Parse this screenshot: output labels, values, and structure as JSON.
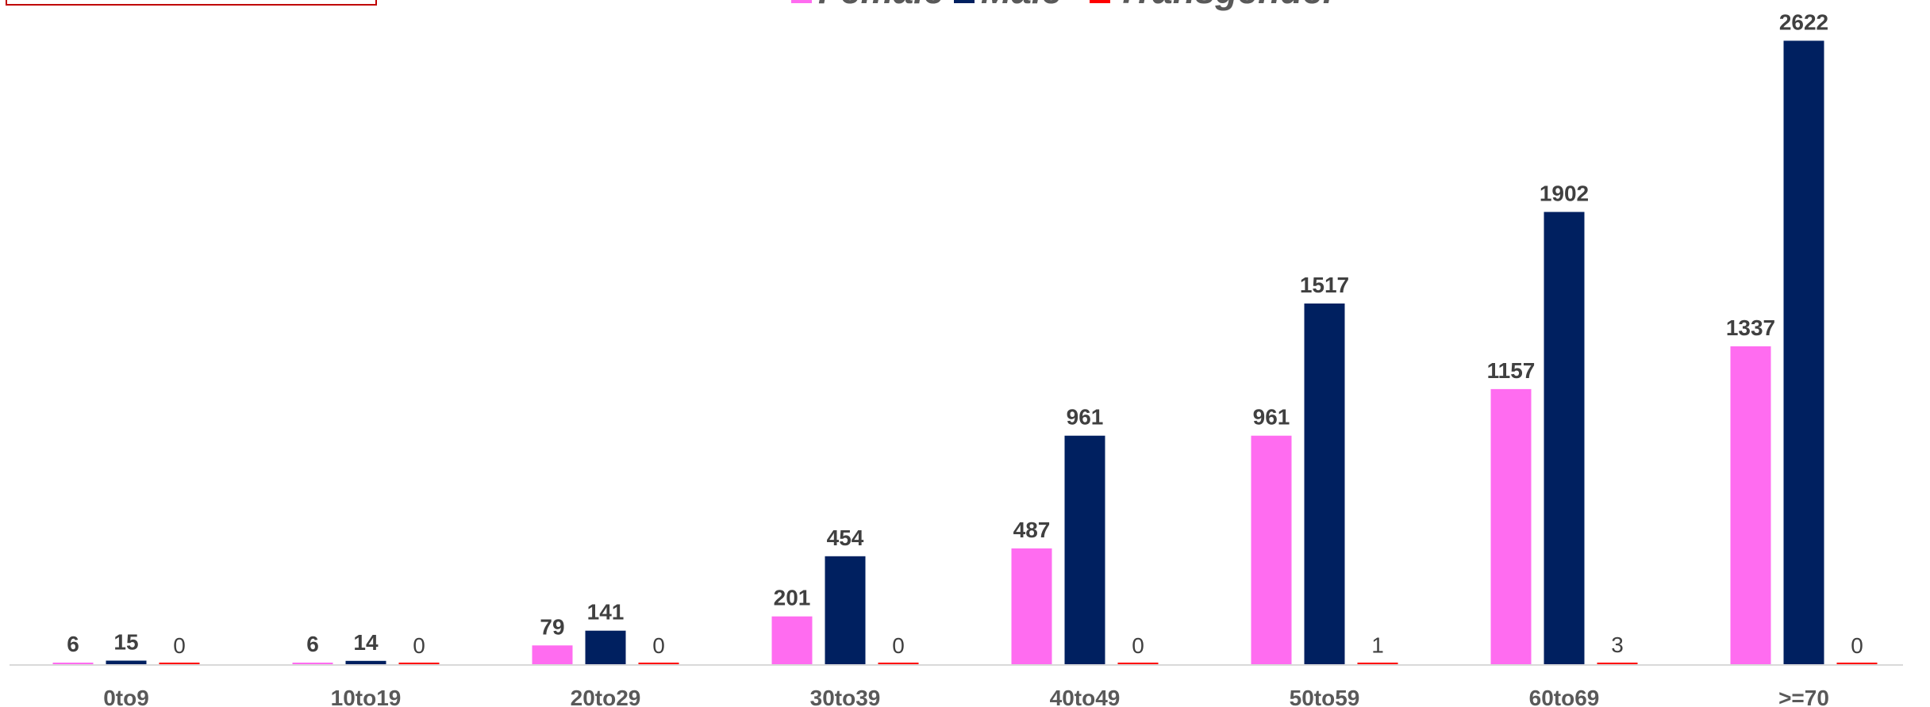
{
  "chart_data": {
    "type": "bar",
    "categories": [
      "0to9",
      "10to19",
      "20to29",
      "30to39",
      "40to49",
      "50to59",
      "60to69",
      ">=70"
    ],
    "series": [
      {
        "name": "Female",
        "color": "#ff6cf0",
        "values": [
          6,
          6,
          79,
          201,
          487,
          961,
          1157,
          1337
        ]
      },
      {
        "name": "Male",
        "color": "#002060",
        "values": [
          15,
          14,
          141,
          454,
          961,
          1517,
          1902,
          2622
        ]
      },
      {
        "name": "Transgender",
        "color": "#ff0000",
        "values": [
          0,
          0,
          0,
          0,
          0,
          1,
          3,
          0
        ]
      }
    ],
    "ylim": [
      0,
      2700
    ]
  }
}
